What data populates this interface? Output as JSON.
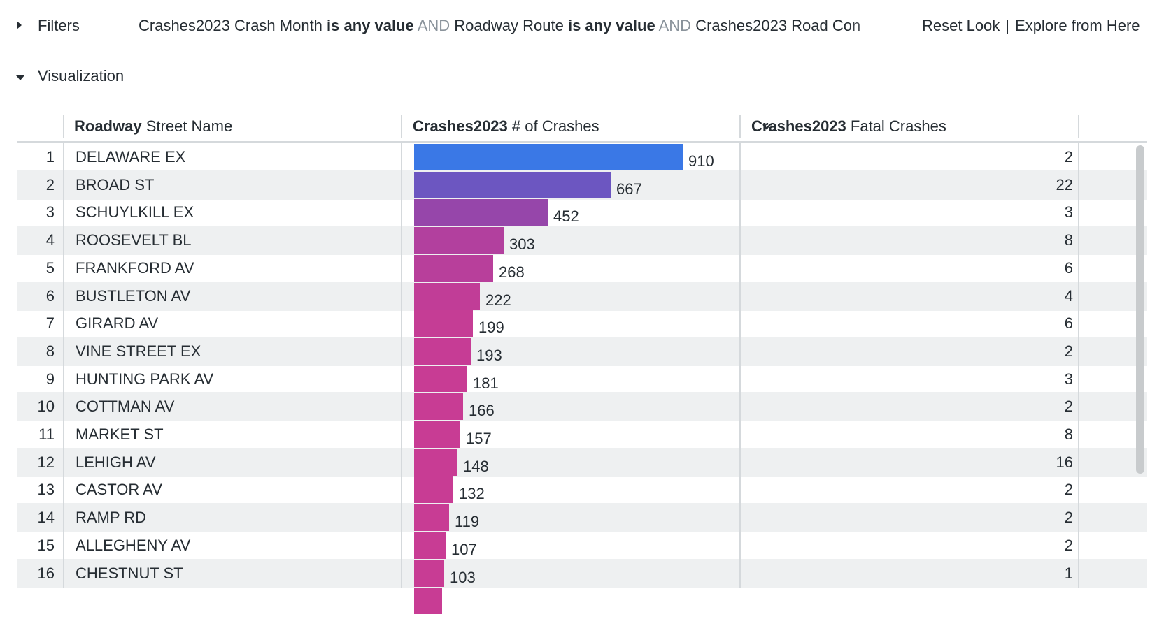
{
  "filters": {
    "label": "Filters",
    "summary": [
      {
        "field": "Crashes2023 Crash Month",
        "op": "is any value"
      },
      {
        "field": "Roadway Route",
        "op": "is any value"
      },
      {
        "field": "Crashes2023 Road Con",
        "op": ""
      }
    ],
    "and_word": "AND",
    "reset_label": "Reset Look",
    "separator": "|",
    "explore_label": "Explore from Here"
  },
  "visualization": {
    "label": "Visualization"
  },
  "table": {
    "columns": {
      "street": {
        "bold": "Roadway",
        "rest": " Street Name"
      },
      "crashes": {
        "bold": "Crashes2023",
        "rest": " # of Crashes"
      },
      "fatal": {
        "bold": "Crashes2023",
        "rest": " Fatal Crashes"
      }
    },
    "bar_max": 910,
    "colors": {
      "start": "#3a78e6",
      "mid": "#7c4bb6",
      "end": "#c83c94"
    },
    "rows": [
      {
        "n": "1",
        "street": "DELAWARE EX",
        "crashes": 910,
        "fatal": "2"
      },
      {
        "n": "2",
        "street": "BROAD ST",
        "crashes": 667,
        "fatal": "22"
      },
      {
        "n": "3",
        "street": "SCHUYLKILL EX",
        "crashes": 452,
        "fatal": "3"
      },
      {
        "n": "4",
        "street": "ROOSEVELT BL",
        "crashes": 303,
        "fatal": "8"
      },
      {
        "n": "5",
        "street": "FRANKFORD AV",
        "crashes": 268,
        "fatal": "6"
      },
      {
        "n": "6",
        "street": "BUSTLETON AV",
        "crashes": 222,
        "fatal": "4"
      },
      {
        "n": "7",
        "street": "GIRARD AV",
        "crashes": 199,
        "fatal": "6"
      },
      {
        "n": "8",
        "street": "VINE STREET EX",
        "crashes": 193,
        "fatal": "2"
      },
      {
        "n": "9",
        "street": "HUNTING PARK AV",
        "crashes": 181,
        "fatal": "3"
      },
      {
        "n": "10",
        "street": "COTTMAN AV",
        "crashes": 166,
        "fatal": "2"
      },
      {
        "n": "11",
        "street": "MARKET ST",
        "crashes": 157,
        "fatal": "8"
      },
      {
        "n": "12",
        "street": "LEHIGH AV",
        "crashes": 148,
        "fatal": "16"
      },
      {
        "n": "13",
        "street": "CASTOR AV",
        "crashes": 132,
        "fatal": "2"
      },
      {
        "n": "14",
        "street": "RAMP RD",
        "crashes": 119,
        "fatal": "2"
      },
      {
        "n": "15",
        "street": "ALLEGHENY AV",
        "crashes": 107,
        "fatal": "2"
      },
      {
        "n": "16",
        "street": "CHESTNUT ST",
        "crashes": 103,
        "fatal": "1"
      }
    ]
  }
}
